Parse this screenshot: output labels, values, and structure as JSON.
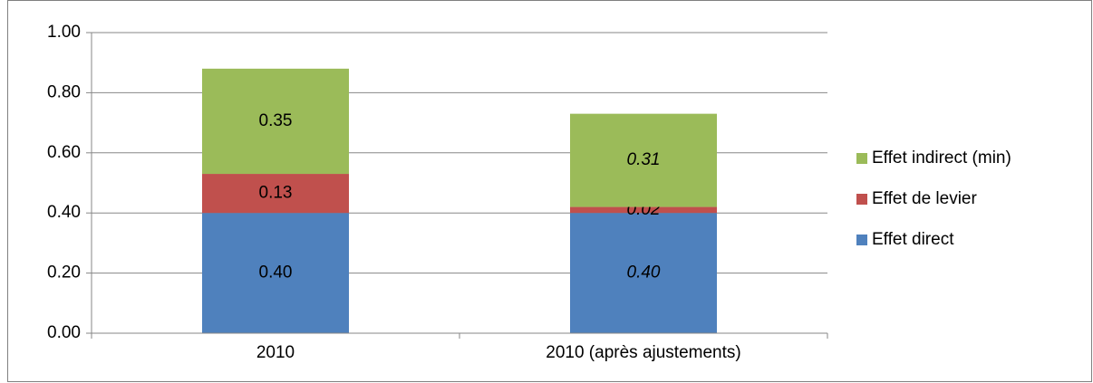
{
  "chart_data": {
    "type": "stacked_bar",
    "categories": [
      "2010",
      "2010 (après ajustements)"
    ],
    "series": [
      {
        "name": "Effet direct",
        "color": "#4f81bd",
        "values": [
          0.4,
          0.4
        ],
        "value_labels": [
          "0.40",
          "0.40"
        ]
      },
      {
        "name": "Effet de levier",
        "color": "#c0504d",
        "values": [
          0.13,
          0.02
        ],
        "value_labels": [
          "0.13",
          "0.02"
        ]
      },
      {
        "name": "Effet indirect (min)",
        "color": "#9bbb59",
        "values": [
          0.35,
          0.31
        ],
        "value_labels": [
          "0.35",
          "0.31"
        ]
      }
    ],
    "ylim": [
      0,
      1
    ],
    "yticks": [
      {
        "value": 0,
        "label": "0.00"
      },
      {
        "value": 0.2,
        "label": "0.20"
      },
      {
        "value": 0.4,
        "label": "0.40"
      },
      {
        "value": 0.6,
        "label": "0.60"
      },
      {
        "value": 0.8,
        "label": "0.80"
      },
      {
        "value": 1,
        "label": "1.00"
      }
    ],
    "grid": true,
    "legend": "right"
  }
}
